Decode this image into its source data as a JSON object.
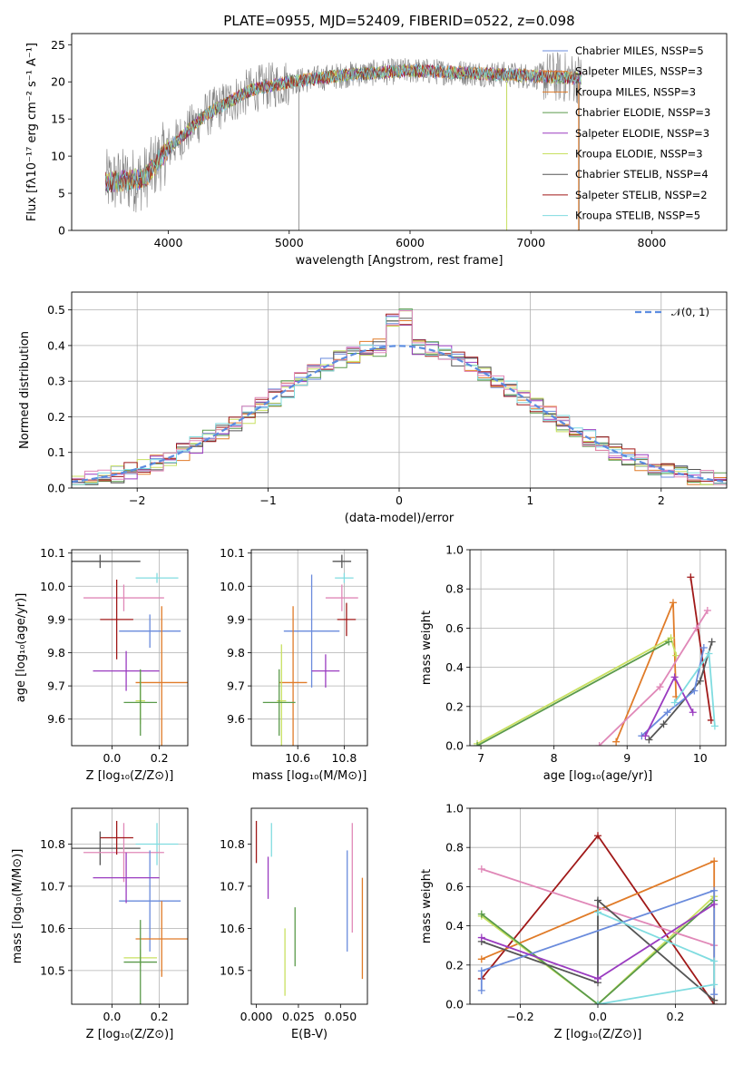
{
  "chart_data": [
    {
      "type": "line",
      "title": "PLATE=0955, MJD=52409, FIBERID=0522, z=0.098",
      "xlabel": "wavelength [Angstrom, rest frame]",
      "ylabel": "Flux [fλ10⁻¹⁷ erg cm⁻² s⁻¹ A⁻¹]",
      "xlim": [
        3200,
        8620
      ],
      "ylim": [
        0,
        26.5
      ],
      "xticks": [
        4000,
        5000,
        6000,
        7000,
        8000
      ],
      "yticks": [
        0,
        5,
        10,
        15,
        20,
        25
      ],
      "grid": false,
      "legend_position": "right",
      "observed_color": "#808080",
      "continuum": {
        "x": [
          3500,
          3800,
          4000,
          4300,
          4700,
          5000,
          5500,
          6000,
          6500,
          7000,
          7400
        ],
        "y": [
          6.5,
          7.0,
          11.0,
          15.5,
          19.0,
          20.0,
          21.0,
          21.5,
          21.2,
          20.8,
          20.5
        ]
      },
      "series": [
        {
          "name": "Chabrier MILES, N_SSP=5",
          "color": "#6a8bdc"
        },
        {
          "name": "Salpeter MILES, N_SSP=3",
          "color": "#e07b28"
        },
        {
          "name": "Kroupa MILES, N_SSP=3",
          "color": "#e07b28"
        },
        {
          "name": "Chabrier ELODIE, N_SSP=3",
          "color": "#5a9a4a"
        },
        {
          "name": "Salpeter ELODIE, N_SSP=3",
          "color": "#9a3bc0"
        },
        {
          "name": "Kroupa ELODIE, N_SSP=3",
          "color": "#c8e060"
        },
        {
          "name": "Chabrier STELIB, N_SSP=4",
          "color": "#555555"
        },
        {
          "name": "Salpeter STELIB, N_SSP=2",
          "color": "#a01818"
        },
        {
          "name": "Kroupa STELIB, N_SSP=5",
          "color": "#80dce0"
        }
      ]
    },
    {
      "type": "line",
      "xlabel": "(data-model)/error",
      "ylabel": "Normed distribution",
      "xlim": [
        -2.5,
        2.5
      ],
      "ylim": [
        0,
        0.55
      ],
      "xticks": [
        -2,
        -1,
        0,
        1,
        2
      ],
      "yticks": [
        0.0,
        0.1,
        0.2,
        0.3,
        0.4,
        0.5
      ],
      "grid": true,
      "legend_position": "top-right",
      "reference": {
        "name": "𝒩(0, 1)",
        "mean": 0,
        "sigma": 1,
        "color": "#5b8ce0"
      },
      "histogram_colors": [
        "#6a8bdc",
        "#e07b28",
        "#5a9a4a",
        "#9a3bc0",
        "#c8e060",
        "#555555",
        "#a01818",
        "#80dce0",
        "#e088b8"
      ]
    },
    {
      "type": "scatter",
      "xlabel": "Z [log₁₀(Z/Z⊙)]",
      "ylabel": "age  [log₁₀(age/yr)]",
      "xlim": [
        -0.17,
        0.32
      ],
      "ylim": [
        9.52,
        10.11
      ],
      "xticks": [
        0.0,
        0.2
      ],
      "yticks": [
        9.6,
        9.7,
        9.8,
        9.9,
        10.0,
        10.1
      ],
      "grid": true,
      "points": [
        {
          "x": -0.05,
          "y": 10.075,
          "xerr": 0.17,
          "yerr": 0.02,
          "color": "#555555"
        },
        {
          "x": 0.19,
          "y": 10.025,
          "xerr": 0.09,
          "yerr": 0.015,
          "color": "#80dce0"
        },
        {
          "x": 0.05,
          "y": 9.965,
          "xerr": 0.17,
          "yerr": 0.04,
          "color": "#e088b8"
        },
        {
          "x": 0.02,
          "y": 9.9,
          "xerr": 0.07,
          "yerr": 0.12,
          "color": "#a01818"
        },
        {
          "x": 0.16,
          "y": 9.865,
          "xerr": 0.13,
          "yerr": 0.05,
          "color": "#6a8bdc"
        },
        {
          "x": 0.06,
          "y": 9.745,
          "xerr": 0.14,
          "yerr": 0.06,
          "color": "#9a3bc0"
        },
        {
          "x": 0.21,
          "y": 9.71,
          "xerr": 0.11,
          "yerr": 0.23,
          "color": "#e07b28"
        },
        {
          "x": 0.12,
          "y": 9.655,
          "xerr": 0.02,
          "yerr": 0.07,
          "color": "#c8e060"
        },
        {
          "x": 0.12,
          "y": 9.65,
          "xerr": 0.07,
          "yerr": 0.1,
          "color": "#5a9a4a"
        }
      ]
    },
    {
      "type": "scatter",
      "xlabel": "mass [log₁₀(M/M⊙)]",
      "ylabel": "",
      "xlim": [
        10.4,
        10.9
      ],
      "ylim": [
        9.52,
        10.11
      ],
      "xticks": [
        10.6,
        10.8
      ],
      "yticks": [
        9.6,
        9.7,
        9.8,
        9.9,
        10.0,
        10.1
      ],
      "grid": true,
      "points": [
        {
          "x": 10.79,
          "y": 10.075,
          "xerr": 0.04,
          "yerr": 0.02,
          "color": "#555555"
        },
        {
          "x": 10.8,
          "y": 10.025,
          "xerr": 0.04,
          "yerr": 0.015,
          "color": "#80dce0"
        },
        {
          "x": 10.79,
          "y": 9.965,
          "xerr": 0.07,
          "yerr": 0.04,
          "color": "#e088b8"
        },
        {
          "x": 10.81,
          "y": 9.9,
          "xerr": 0.04,
          "yerr": 0.05,
          "color": "#a01818"
        },
        {
          "x": 10.66,
          "y": 9.865,
          "xerr": 0.12,
          "yerr": 0.17,
          "color": "#6a8bdc"
        },
        {
          "x": 10.72,
          "y": 9.745,
          "xerr": 0.06,
          "yerr": 0.05,
          "color": "#9a3bc0"
        },
        {
          "x": 10.58,
          "y": 9.71,
          "xerr": 0.06,
          "yerr": 0.23,
          "color": "#e07b28"
        },
        {
          "x": 10.53,
          "y": 9.655,
          "xerr": 0.02,
          "yerr": 0.17,
          "color": "#c8e060"
        },
        {
          "x": 10.52,
          "y": 9.65,
          "xerr": 0.07,
          "yerr": 0.1,
          "color": "#5a9a4a"
        }
      ]
    },
    {
      "type": "line",
      "xlabel": "age  [log₁₀(age/yr)]",
      "ylabel": "mass weight",
      "xlim": [
        6.85,
        10.35
      ],
      "ylim": [
        0,
        1.0
      ],
      "xticks": [
        7,
        8,
        9,
        10
      ],
      "yticks": [
        0.0,
        0.2,
        0.4,
        0.6,
        0.8,
        1.0
      ],
      "grid": true,
      "series": [
        {
          "color": "#a01818",
          "x": [
            9.87,
            10.15
          ],
          "y": [
            0.86,
            0.13
          ]
        },
        {
          "color": "#e07b28",
          "x": [
            8.85,
            9.63,
            9.67
          ],
          "y": [
            0.02,
            0.73,
            0.25
          ]
        },
        {
          "color": "#c8e060",
          "x": [
            6.95,
            9.6,
            9.67
          ],
          "y": [
            0.01,
            0.55,
            0.46
          ]
        },
        {
          "color": "#5a9a4a",
          "x": [
            6.95,
            9.57
          ],
          "y": [
            0.0,
            0.53
          ]
        },
        {
          "color": "#e088b8",
          "x": [
            8.62,
            9.45,
            9.95,
            10.1
          ],
          "y": [
            0.0,
            0.3,
            0.6,
            0.69
          ]
        },
        {
          "color": "#555555",
          "x": [
            9.3,
            9.5,
            10.0,
            10.16
          ],
          "y": [
            0.03,
            0.11,
            0.33,
            0.53
          ]
        },
        {
          "color": "#6a8bdc",
          "x": [
            9.2,
            9.55,
            9.92,
            10.05
          ],
          "y": [
            0.05,
            0.17,
            0.28,
            0.5
          ]
        },
        {
          "color": "#9a3bc0",
          "x": [
            9.25,
            9.65,
            9.9
          ],
          "y": [
            0.05,
            0.35,
            0.17
          ]
        },
        {
          "color": "#80dce0",
          "x": [
            9.65,
            10.12,
            10.2
          ],
          "y": [
            0.22,
            0.47,
            0.1
          ]
        }
      ]
    },
    {
      "type": "scatter",
      "xlabel": "Z [log₁₀(Z/Z⊙)]",
      "ylabel": "mass [log₁₀(M/M⊙)]",
      "xlim": [
        -0.17,
        0.32
      ],
      "ylim": [
        10.42,
        10.885
      ],
      "xticks": [
        0.0,
        0.2
      ],
      "yticks": [
        10.5,
        10.6,
        10.7,
        10.8
      ],
      "grid": true,
      "points": [
        {
          "x": -0.05,
          "y": 10.79,
          "xerr": 0.17,
          "yerr": 0.04,
          "color": "#555555"
        },
        {
          "x": 0.19,
          "y": 10.8,
          "xerr": 0.09,
          "yerr": 0.05,
          "color": "#80dce0"
        },
        {
          "x": 0.05,
          "y": 10.78,
          "xerr": 0.17,
          "yerr": 0.07,
          "color": "#e088b8"
        },
        {
          "x": 0.02,
          "y": 10.815,
          "xerr": 0.07,
          "yerr": 0.04,
          "color": "#a01818"
        },
        {
          "x": 0.16,
          "y": 10.665,
          "xerr": 0.13,
          "yerr": 0.12,
          "color": "#6a8bdc"
        },
        {
          "x": 0.06,
          "y": 10.72,
          "xerr": 0.14,
          "yerr": 0.06,
          "color": "#9a3bc0"
        },
        {
          "x": 0.21,
          "y": 10.575,
          "xerr": 0.11,
          "yerr": 0.09,
          "color": "#e07b28"
        },
        {
          "x": 0.12,
          "y": 10.53,
          "xerr": 0.07,
          "yerr": 0.02,
          "color": "#c8e060"
        },
        {
          "x": 0.12,
          "y": 10.52,
          "xerr": 0.07,
          "yerr": 0.1,
          "color": "#5a9a4a"
        }
      ]
    },
    {
      "type": "scatter",
      "xlabel": "E(B-V)",
      "ylabel": "",
      "xlim": [
        -0.003,
        0.066
      ],
      "ylim": [
        10.42,
        10.885
      ],
      "xticks": [
        0.0,
        0.025,
        0.05
      ],
      "yticks": [
        10.5,
        10.6,
        10.7,
        10.8
      ],
      "grid": false,
      "points": [
        {
          "x": 0.0,
          "y": 10.805,
          "yerr": 0.05,
          "color": "#a01818"
        },
        {
          "x": 0.007,
          "y": 10.72,
          "yerr": 0.05,
          "color": "#9a3bc0"
        },
        {
          "x": 0.009,
          "y": 10.81,
          "yerr": 0.04,
          "color": "#80dce0"
        },
        {
          "x": 0.017,
          "y": 10.52,
          "yerr": 0.08,
          "color": "#c8e060"
        },
        {
          "x": 0.023,
          "y": 10.58,
          "yerr": 0.07,
          "color": "#5a9a4a"
        },
        {
          "x": 0.054,
          "y": 10.665,
          "yerr": 0.12,
          "color": "#6a8bdc"
        },
        {
          "x": 0.057,
          "y": 10.72,
          "yerr": 0.13,
          "color": "#e088b8"
        },
        {
          "x": 0.063,
          "y": 10.6,
          "yerr": 0.12,
          "color": "#e07b28"
        }
      ]
    },
    {
      "type": "line",
      "xlabel": "Z [log₁₀(Z/Z⊙)]",
      "ylabel": "mass weight",
      "xlim": [
        -0.33,
        0.33
      ],
      "ylim": [
        0,
        1.0
      ],
      "xticks": [
        -0.2,
        0.0,
        0.2
      ],
      "yticks": [
        0.0,
        0.2,
        0.4,
        0.6,
        0.8,
        1.0
      ],
      "grid": true,
      "series": [
        {
          "color": "#a01818",
          "x": [
            -0.3,
            0.0,
            0.3
          ],
          "y": [
            0.13,
            0.86,
            0.0
          ]
        },
        {
          "color": "#e07b28",
          "x": [
            -0.3,
            0.3,
            0.3
          ],
          "y": [
            0.23,
            0.73,
            0.02
          ]
        },
        {
          "color": "#c8e060",
          "x": [
            -0.3,
            0.0,
            0.3
          ],
          "y": [
            0.45,
            0.0,
            0.55
          ]
        },
        {
          "color": "#5a9a4a",
          "x": [
            -0.3,
            0.0,
            0.3
          ],
          "y": [
            0.46,
            0.0,
            0.53
          ]
        },
        {
          "color": "#e088b8",
          "x": [
            -0.3,
            0.3
          ],
          "y": [
            0.69,
            0.3
          ]
        },
        {
          "color": "#555555",
          "x": [
            -0.3,
            0.0,
            0.0,
            0.3
          ],
          "y": [
            0.32,
            0.11,
            0.53,
            0.02
          ]
        },
        {
          "color": "#6a8bdc",
          "x": [
            -0.3,
            -0.3,
            0.3,
            0.3
          ],
          "y": [
            0.07,
            0.17,
            0.58,
            0.05
          ]
        },
        {
          "color": "#9a3bc0",
          "x": [
            -0.3,
            0.0,
            0.3
          ],
          "y": [
            0.34,
            0.13,
            0.51
          ]
        },
        {
          "color": "#80dce0",
          "x": [
            0.0,
            0.3,
            0.3,
            0.0
          ],
          "y": [
            0.47,
            0.22,
            0.1,
            0.0
          ]
        }
      ]
    }
  ]
}
